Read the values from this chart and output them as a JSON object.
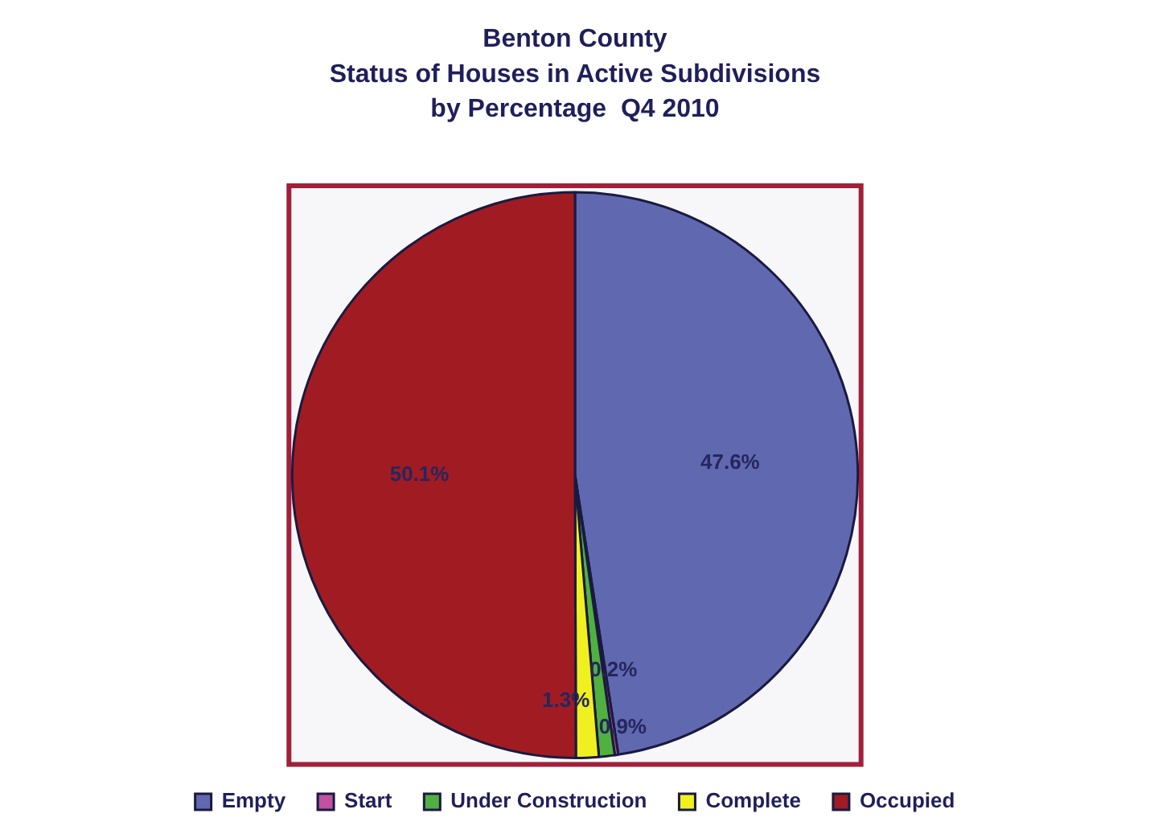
{
  "chart_data": {
    "type": "pie",
    "title": "Benton County\nStatus of Houses in Active Subdivisions\nby Percentage  Q4 2010",
    "categories": [
      "Empty",
      "Start",
      "Under Construction",
      "Complete",
      "Occupied"
    ],
    "values": [
      47.6,
      0.2,
      0.9,
      1.3,
      50.1
    ],
    "colors": [
      "#6068b0",
      "#c050a0",
      "#50b040",
      "#f0f020",
      "#a01c22"
    ],
    "value_labels": [
      "47.6%",
      "0.2%",
      "0.9%",
      "1.3%",
      "50.1%"
    ],
    "legend": "bottom"
  }
}
